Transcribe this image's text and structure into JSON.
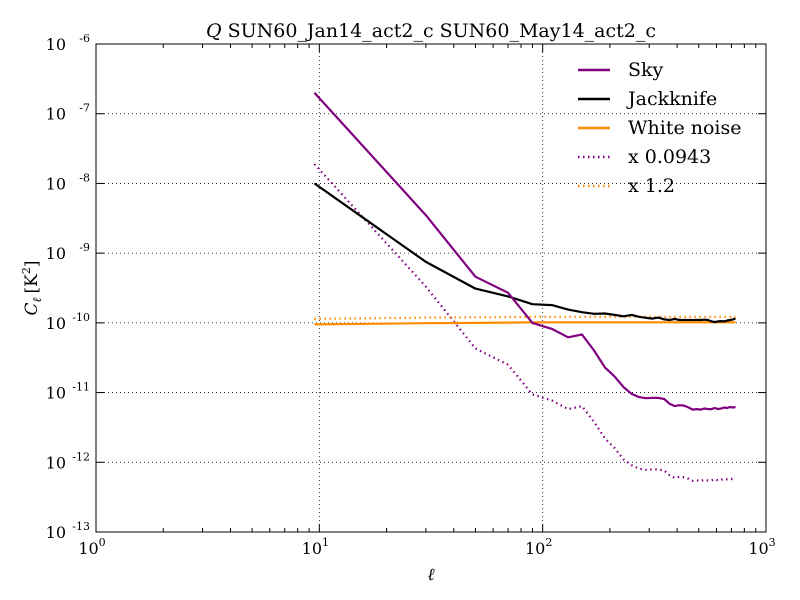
{
  "chart_data": {
    "type": "line",
    "title": "Q SUN60_Jan14_act2_c SUN60_May14_act2_c",
    "title_symbol": "Q",
    "title_text": "SUN60_Jan14_act2_c SUN60_May14_act2_c",
    "xlabel": "ℓ",
    "ylabel": "C",
    "ylabel_subscript": "ℓ",
    "ylabel_unit": "[K",
    "ylabel_unit_sup": "2",
    "ylabel_unit_close": "]",
    "x_scale": "log",
    "y_scale": "log",
    "xlim": [
      1,
      1000
    ],
    "ylim": [
      1e-13,
      1e-06
    ],
    "grid": true,
    "legend_position": "top-right",
    "x_ticks": [
      {
        "value": 1,
        "base": "10",
        "exp": "0"
      },
      {
        "value": 10,
        "base": "10",
        "exp": "1"
      },
      {
        "value": 100,
        "base": "10",
        "exp": "2"
      },
      {
        "value": 1000,
        "base": "10",
        "exp": "3"
      }
    ],
    "y_ticks": [
      {
        "value": 1e-13,
        "base": "10",
        "exp": "-13"
      },
      {
        "value": 1e-12,
        "base": "10",
        "exp": "-12"
      },
      {
        "value": 1e-11,
        "base": "10",
        "exp": "-11"
      },
      {
        "value": 1e-10,
        "base": "10",
        "exp": "-10"
      },
      {
        "value": 1e-09,
        "base": "10",
        "exp": "-9"
      },
      {
        "value": 1e-08,
        "base": "10",
        "exp": "-8"
      },
      {
        "value": 1e-07,
        "base": "10",
        "exp": "-7"
      },
      {
        "value": 1e-06,
        "base": "10",
        "exp": "-6"
      }
    ],
    "series": [
      {
        "name": "Sky",
        "color": "#800080",
        "style": "solid",
        "x": [
          9.5,
          30,
          50,
          70,
          90,
          110,
          130,
          150,
          170,
          190,
          210,
          230,
          250,
          270,
          290,
          310,
          330,
          350,
          370,
          390,
          410,
          430,
          450,
          470,
          490,
          510,
          530,
          550,
          570,
          590,
          610,
          630,
          650,
          670,
          690,
          710,
          730
        ],
        "y": [
          2e-07,
          3.5e-09,
          4.6e-10,
          2.7e-10,
          1e-10,
          8.2e-11,
          6.2e-11,
          6.8e-11,
          4e-11,
          2.3e-11,
          1.7e-11,
          1.2e-11,
          9.6e-12,
          8.6e-12,
          8.3e-12,
          8.4e-12,
          8.4e-12,
          8.1e-12,
          6.9e-12,
          6.4e-12,
          6.6e-12,
          6.5e-12,
          6.1e-12,
          5.7e-12,
          5.8e-12,
          5.7e-12,
          5.9e-12,
          5.8e-12,
          5.8e-12,
          6e-12,
          5.8e-12,
          5.9e-12,
          6.1e-12,
          6e-12,
          6.2e-12,
          6.1e-12,
          6.2e-12
        ]
      },
      {
        "name": "Jackknife",
        "color": "#000000",
        "style": "solid",
        "x": [
          9.5,
          30,
          50,
          70,
          90,
          110,
          130,
          150,
          170,
          190,
          210,
          230,
          250,
          270,
          290,
          310,
          330,
          350,
          370,
          390,
          410,
          430,
          450,
          470,
          490,
          510,
          530,
          550,
          570,
          590,
          610,
          630,
          650,
          670,
          690,
          710,
          730
        ],
        "y": [
          1e-08,
          7.5e-10,
          3.1e-10,
          2.4e-10,
          1.85e-10,
          1.8e-10,
          1.55e-10,
          1.42e-10,
          1.35e-10,
          1.36e-10,
          1.3e-10,
          1.24e-10,
          1.3e-10,
          1.22e-10,
          1.18e-10,
          1.15e-10,
          1.19e-10,
          1.12e-10,
          1.1e-10,
          1.14e-10,
          1.1e-10,
          1.1e-10,
          1.1e-10,
          1.1e-10,
          1.1e-10,
          1.1e-10,
          1.11e-10,
          1.1e-10,
          1.05e-10,
          1.03e-10,
          1.05e-10,
          1.06e-10,
          1.05e-10,
          1.08e-10,
          1.1e-10,
          1.12e-10,
          1.15e-10
        ]
      },
      {
        "name": "White noise",
        "color": "#ff8c00",
        "style": "solid",
        "x": [
          9.5,
          30,
          50,
          70,
          90,
          110,
          150,
          200,
          300,
          400,
          500,
          600,
          730
        ],
        "y": [
          9.5e-11,
          9.9e-11,
          1e-10,
          1.01e-10,
          1.02e-10,
          1.02e-10,
          1.02e-10,
          1.02e-10,
          1.02e-10,
          1.02e-10,
          1.02e-10,
          1.02e-10,
          1.02e-10
        ]
      },
      {
        "name": "x 0.0943",
        "color": "#800080",
        "style": "dotted",
        "x": [
          9.5,
          30,
          50,
          70,
          90,
          110,
          130,
          150,
          170,
          190,
          210,
          230,
          250,
          270,
          290,
          310,
          330,
          350,
          370,
          390,
          410,
          430,
          450,
          470,
          490,
          510,
          530,
          550,
          570,
          590,
          610,
          630,
          650,
          670,
          690,
          710,
          730
        ],
        "y": [
          1.9e-08,
          3.3e-10,
          4.3e-11,
          2.5e-11,
          9.4e-12,
          7.7e-12,
          5.8e-12,
          6.4e-12,
          3.8e-12,
          2.2e-12,
          1.6e-12,
          1.1e-12,
          9.1e-13,
          8.1e-13,
          7.8e-13,
          7.9e-13,
          7.9e-13,
          7.6e-13,
          6.5e-13,
          6e-13,
          6.2e-13,
          6.1e-13,
          5.8e-13,
          5.4e-13,
          5.5e-13,
          5.4e-13,
          5.6e-13,
          5.5e-13,
          5.5e-13,
          5.7e-13,
          5.5e-13,
          5.6e-13,
          5.8e-13,
          5.7e-13,
          5.8e-13,
          5.7e-13,
          5.8e-13
        ]
      },
      {
        "name": "x 1.2",
        "color": "#ff8c00",
        "style": "dotted",
        "x": [
          9.5,
          30,
          50,
          70,
          90,
          110,
          150,
          200,
          300,
          400,
          500,
          600,
          730
        ],
        "y": [
          1.14e-10,
          1.19e-10,
          1.2e-10,
          1.21e-10,
          1.22e-10,
          1.22e-10,
          1.22e-10,
          1.22e-10,
          1.22e-10,
          1.22e-10,
          1.22e-10,
          1.22e-10,
          1.22e-10
        ]
      }
    ]
  }
}
